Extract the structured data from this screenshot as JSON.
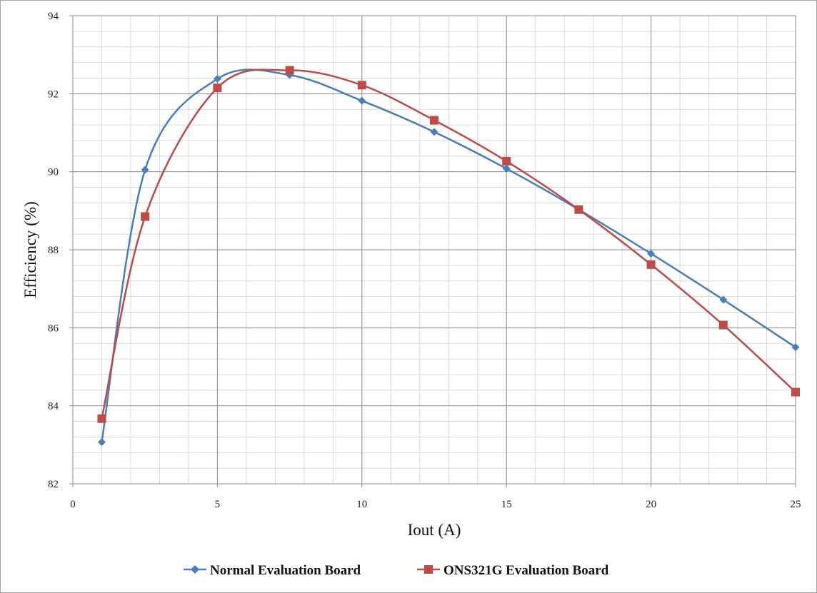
{
  "chart_data": {
    "type": "line",
    "title": "",
    "xlabel": "Iout (A)",
    "ylabel": "Efficiency (%)",
    "xlim": [
      0,
      25
    ],
    "ylim": [
      82,
      94
    ],
    "xticks": [
      "0",
      "5",
      "10",
      "15",
      "20",
      "25"
    ],
    "yticks": [
      "82",
      "84",
      "86",
      "88",
      "90",
      "92",
      "94"
    ],
    "x_minor_step": 1,
    "y_minor_step": 0.4,
    "grid": true,
    "smooth": true,
    "legend_position": "bottom",
    "series": [
      {
        "name": "Normal Evaluation Board",
        "color": "#4a7ebb",
        "marker": "diamond",
        "x": [
          1,
          2.5,
          5,
          7.5,
          10,
          12.5,
          15,
          17.5,
          20,
          22.5,
          25
        ],
        "y": [
          83.07,
          90.05,
          92.38,
          92.48,
          91.82,
          91.02,
          90.08,
          89.03,
          87.9,
          86.72,
          85.5
        ]
      },
      {
        "name": "ONS321G Evaluation Board",
        "color": "#be4b48",
        "marker": "square",
        "x": [
          1,
          2.5,
          5,
          7.5,
          10,
          12.5,
          15,
          17.5,
          20,
          22.5,
          25
        ],
        "y": [
          83.67,
          88.85,
          92.15,
          92.6,
          92.22,
          91.32,
          90.27,
          89.03,
          87.62,
          86.07,
          84.35
        ]
      }
    ]
  }
}
